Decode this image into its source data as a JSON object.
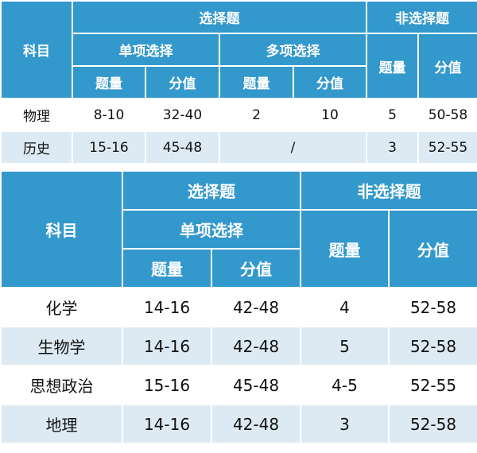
{
  "table1": {
    "h_subject": "科目",
    "h_choice": "选择题",
    "h_nonchoice": "非选择题",
    "h_single": "单项选择",
    "h_multi": "多项选择",
    "h_count": "题量",
    "h_score": "分值",
    "rows": [
      {
        "subject": "物理",
        "single_count": "8-10",
        "single_score": "32-40",
        "multi_count": "2",
        "multi_score": "10",
        "non_count": "5",
        "non_score": "50-58"
      },
      {
        "subject": "历史",
        "single_count": "15-16",
        "single_score": "45-48",
        "multi": "/",
        "non_count": "3",
        "non_score": "52-55"
      }
    ]
  },
  "table2": {
    "h_subject": "科目",
    "h_choice": "选择题",
    "h_nonchoice": "非选择题",
    "h_single": "单项选择",
    "h_count": "题量",
    "h_score": "分值",
    "rows": [
      {
        "subject": "化学",
        "single_count": "14-16",
        "single_score": "42-48",
        "non_count": "4",
        "non_score": "52-58"
      },
      {
        "subject": "生物学",
        "single_count": "14-16",
        "single_score": "42-48",
        "non_count": "5",
        "non_score": "52-58"
      },
      {
        "subject": "思想政治",
        "single_count": "15-16",
        "single_score": "45-48",
        "non_count": "4-5",
        "non_score": "52-55"
      },
      {
        "subject": "地理",
        "single_count": "14-16",
        "single_score": "42-48",
        "non_count": "3",
        "non_score": "52-58"
      }
    ]
  }
}
